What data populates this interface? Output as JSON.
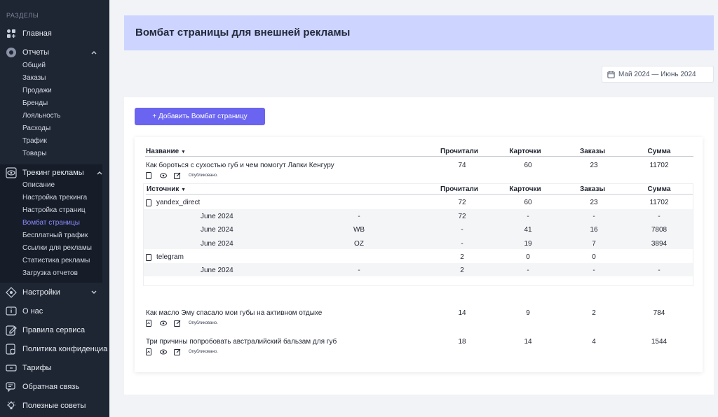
{
  "sidebar": {
    "section_title": "РАЗДЕЛЫ",
    "main": "Главная",
    "reports": {
      "label": "Отчеты",
      "items": [
        "Общий",
        "Заказы",
        "Продажи",
        "Бренды",
        "Лояльность",
        "Расходы",
        "Трафик",
        "Товары"
      ]
    },
    "tracking": {
      "label": "Трекинг рекламы",
      "items": [
        "Описание",
        "Настройка трекинга",
        "Настройка страниц",
        "Вомбат страницы",
        "Бесплатный трафик",
        "Ссылки для рекламы",
        "Статистика рекламы",
        "Загрузка отчетов"
      ]
    },
    "settings": "Настройки",
    "about": "О нас",
    "rules": "Правила сервиса",
    "privacy": "Политика конфиденциа",
    "tariffs": "Тарифы",
    "feedback": "Обратная связь",
    "tips": "Полезные советы"
  },
  "page": {
    "title": "Вомбат страницы для внешней рекламы",
    "date_range": "Май 2024 — Июнь 2024",
    "add_button": "+ Добавить Вомбат страницу"
  },
  "table": {
    "headers": {
      "name": "Название",
      "read": "Прочитали",
      "cards": "Карточки",
      "orders": "Заказы",
      "sum": "Сумма"
    },
    "status_label": "Опубликовано.",
    "rows": [
      {
        "title": "Как бороться с сухостью губ и чем помогут Лапки Кенгуру",
        "read": "74",
        "cards": "60",
        "orders": "23",
        "sum": "11702"
      },
      {
        "title": "Как масло Эму спасало мои губы на активном отдыхе",
        "read": "14",
        "cards": "9",
        "orders": "2",
        "sum": "784"
      },
      {
        "title": "Три причины попробовать австралийский бальзам для губ",
        "read": "18",
        "cards": "14",
        "orders": "4",
        "sum": "1544"
      }
    ],
    "sub": {
      "headers": {
        "source": "Источник",
        "read": "Прочитали",
        "cards": "Карточки",
        "orders": "Заказы",
        "sum": "Сумма"
      },
      "sources": [
        {
          "name": "yandex_direct",
          "read": "72",
          "cards": "60",
          "orders": "23",
          "sum": "11702",
          "details": [
            {
              "month": "June 2024",
              "mp": "-",
              "read": "72",
              "cards": "-",
              "orders": "-",
              "sum": "-"
            },
            {
              "month": "June 2024",
              "mp": "WB",
              "read": "-",
              "cards": "41",
              "orders": "16",
              "sum": "7808"
            },
            {
              "month": "June 2024",
              "mp": "OZ",
              "read": "-",
              "cards": "19",
              "orders": "7",
              "sum": "3894"
            }
          ]
        },
        {
          "name": "telegram",
          "read": "2",
          "cards": "0",
          "orders": "0",
          "sum": "",
          "details": [
            {
              "month": "June 2024",
              "mp": "-",
              "read": "2",
              "cards": "-",
              "orders": "-",
              "sum": "-"
            }
          ]
        }
      ]
    }
  }
}
